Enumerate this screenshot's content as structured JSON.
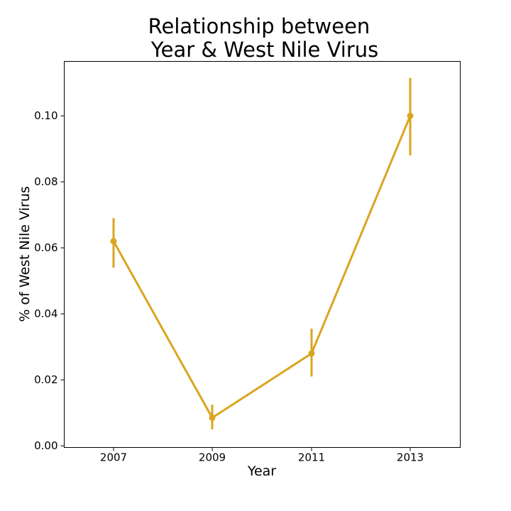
{
  "chart_data": {
    "type": "line",
    "title_lines": [
      "Relationship between",
      "Year & West Nile Virus"
    ],
    "xlabel": "Year",
    "ylabel": "% of West Nile Virus",
    "categories": [
      "2007",
      "2009",
      "2011",
      "2013"
    ],
    "values": [
      0.062,
      0.0085,
      0.028,
      0.1
    ],
    "error_low": [
      0.054,
      0.005,
      0.021,
      0.088
    ],
    "error_high": [
      0.069,
      0.0125,
      0.0355,
      0.1115
    ],
    "yticks": [
      0.0,
      0.02,
      0.04,
      0.06,
      0.08,
      0.1
    ],
    "ytick_labels": [
      "0.00",
      "0.02",
      "0.04",
      "0.06",
      "0.08",
      "0.10"
    ],
    "ylim": [
      -0.0005,
      0.1165
    ],
    "grid": false,
    "color": "#DAA520"
  }
}
